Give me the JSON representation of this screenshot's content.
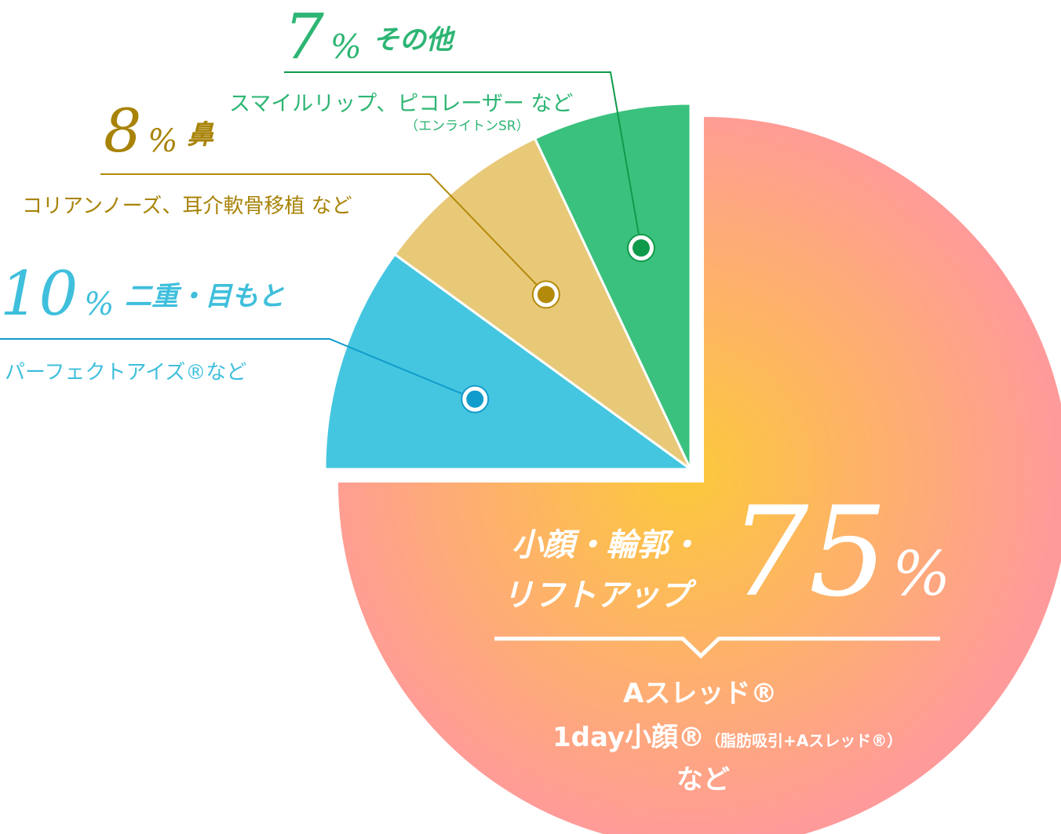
{
  "chart_data": {
    "type": "pie",
    "unit": "%",
    "slices": [
      {
        "label": "小顔・輪郭・リフトアップ",
        "label_line1": "小顔・輪郭・",
        "label_line2": "リフトアップ",
        "value": 75,
        "color": "#fcc93a",
        "color_outer": "#ff9a9a",
        "examples": [
          "Aスレッド®",
          "1day小顔®",
          "（脂肪吸引+Aスレッド®）",
          "など"
        ]
      },
      {
        "label": "二重・目もと",
        "value": 10,
        "color": "#45c6e0",
        "marker_color": "#119ccb",
        "examples": [
          "パーフェクトアイズ®など"
        ]
      },
      {
        "label": "鼻",
        "value": 8,
        "color": "#e8c978",
        "marker_color": "#b38a0a",
        "examples": [
          "コリアンノーズ、耳介軟骨移植 など"
        ]
      },
      {
        "label": "その他",
        "value": 7,
        "color": "#3bc17e",
        "marker_color": "#0f9a4b",
        "examples": [
          "スマイルリップ、ピコレーザー など",
          "（エンライトンSR）"
        ]
      }
    ],
    "text_colors": {
      "face": "#ffffff",
      "eye": "#3fbfdc",
      "nose": "#a88307",
      "other": "#2db573"
    }
  }
}
